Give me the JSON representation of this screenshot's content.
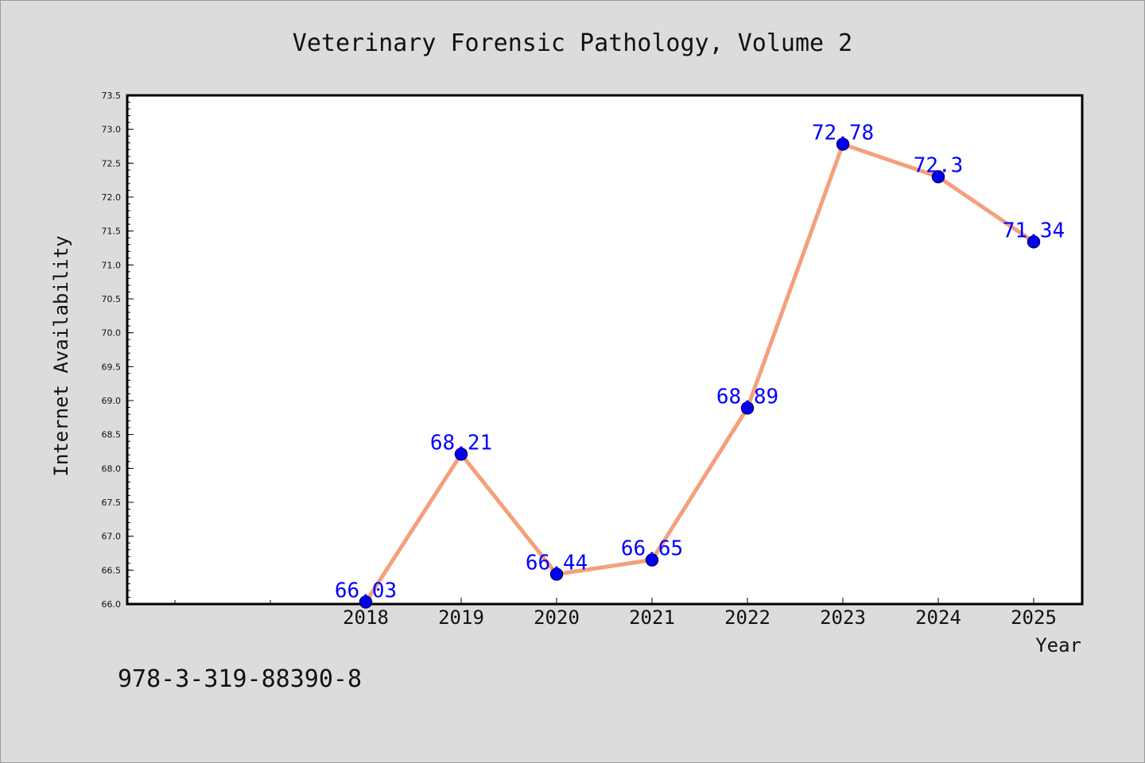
{
  "chart_data": {
    "type": "line",
    "title": "Veterinary Forensic Pathology, Volume 2",
    "xlabel": "Year",
    "ylabel": "Internet Availability",
    "x": [
      "2018",
      "2019",
      "2020",
      "2021",
      "2022",
      "2023",
      "2024",
      "2025"
    ],
    "series": [
      {
        "values": [
          66.03,
          68.21,
          66.44,
          66.65,
          68.89,
          72.78,
          72.3,
          71.34
        ]
      }
    ],
    "data_labels": [
      "66.03",
      "68.21",
      "66.44",
      "66.65",
      "68.89",
      "72.78",
      "72.3",
      "71.34"
    ],
    "ylim": [
      66.0,
      73.5
    ],
    "yticks": [
      "66.0",
      "66.5",
      "67.0",
      "67.5",
      "68.0",
      "68.5",
      "69.0",
      "69.5",
      "70.0",
      "70.5",
      "71.0",
      "71.5",
      "72.0",
      "72.5",
      "73.0",
      "73.5"
    ],
    "grid": false,
    "legend": "none",
    "colors": {
      "line": "#f4a07c",
      "marker": "#0000ee",
      "marker_edge": "#000080",
      "label": "#0000ff",
      "background": "#dcdcdc",
      "plot_bg": "#ffffff"
    }
  },
  "footer": {
    "isbn": "978-3-319-88390-8"
  }
}
